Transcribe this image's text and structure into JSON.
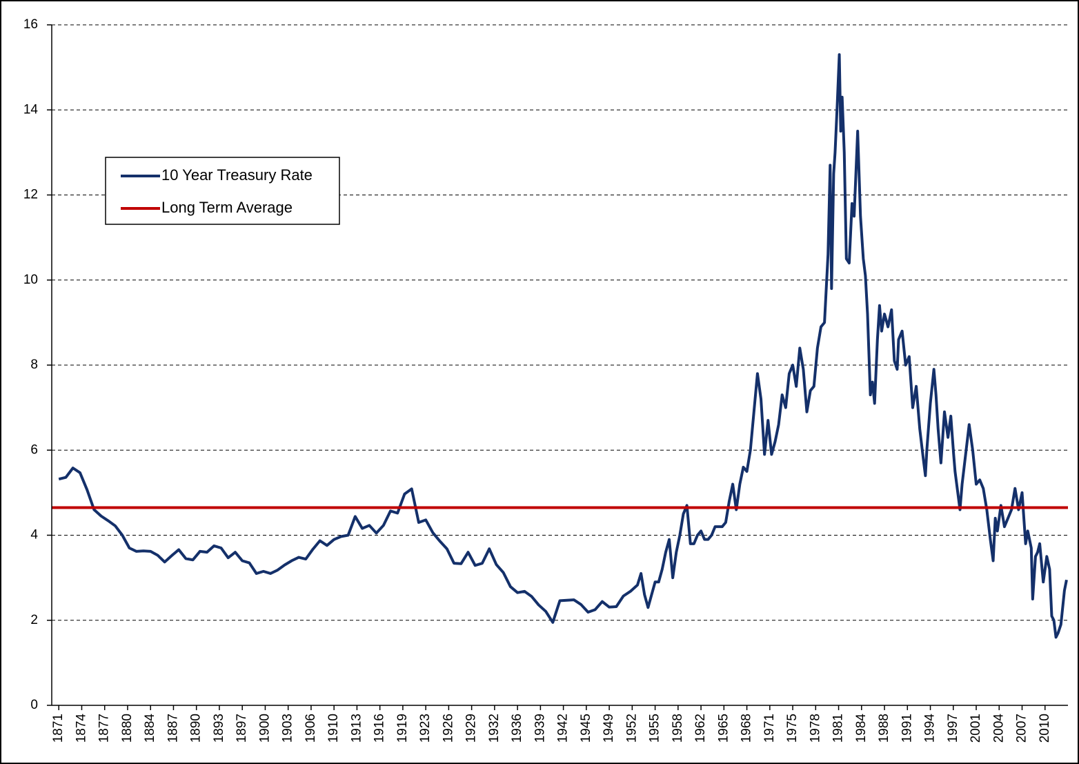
{
  "chart_data": {
    "type": "line",
    "xlim": [
      1870,
      2014
    ],
    "ylim": [
      0,
      16
    ],
    "yticks": [
      0,
      2,
      4,
      6,
      8,
      10,
      12,
      14,
      16
    ],
    "grid": true,
    "legend": "upper left",
    "xticks": [
      1871,
      {
        "value": 1874.25,
        "label": "1874"
      },
      {
        "value": 1877.5,
        "label": "1877"
      },
      {
        "value": 1880.75,
        "label": "1880"
      },
      1884,
      {
        "value": 1887.25,
        "label": "1887"
      },
      {
        "value": 1890.5,
        "label": "1890"
      },
      {
        "value": 1893.75,
        "label": "1893"
      },
      1897,
      {
        "value": 1900.25,
        "label": "1900"
      },
      {
        "value": 1903.5,
        "label": "1903"
      },
      {
        "value": 1906.75,
        "label": "1906"
      },
      1910,
      {
        "value": 1913.25,
        "label": "1913"
      },
      {
        "value": 1916.5,
        "label": "1916"
      },
      {
        "value": 1919.75,
        "label": "1919"
      },
      1923,
      {
        "value": 1926.25,
        "label": "1926"
      },
      {
        "value": 1929.5,
        "label": "1929"
      },
      {
        "value": 1932.75,
        "label": "1932"
      },
      1936,
      {
        "value": 1939.25,
        "label": "1939"
      },
      {
        "value": 1942.5,
        "label": "1942"
      },
      {
        "value": 1945.75,
        "label": "1945"
      },
      1949,
      {
        "value": 1952.25,
        "label": "1952"
      },
      {
        "value": 1955.5,
        "label": "1955"
      },
      {
        "value": 1958.75,
        "label": "1958"
      },
      1962,
      {
        "value": 1965.25,
        "label": "1965"
      },
      {
        "value": 1968.5,
        "label": "1968"
      },
      {
        "value": 1971.75,
        "label": "1971"
      },
      1975,
      {
        "value": 1978.25,
        "label": "1978"
      },
      {
        "value": 1981.5,
        "label": "1981"
      },
      {
        "value": 1984.75,
        "label": "1984"
      },
      1988,
      {
        "value": 1991.25,
        "label": "1991"
      },
      {
        "value": 1994.5,
        "label": "1994"
      },
      {
        "value": 1997.75,
        "label": "1997"
      },
      2001,
      {
        "value": 2004.25,
        "label": "2004"
      },
      {
        "value": 2007.5,
        "label": "2007"
      },
      {
        "value": 2010.75,
        "label": "2010"
      }
    ],
    "series": [
      {
        "name": "10 Year Treasury Rate",
        "color": "#14306a",
        "x": [
          1871,
          1872,
          1873,
          1874,
          1875,
          1876,
          1877,
          1878,
          1879,
          1880,
          1881,
          1882,
          1883,
          1884,
          1885,
          1886,
          1887,
          1888,
          1889,
          1890,
          1891,
          1892,
          1893,
          1894,
          1895,
          1896,
          1897,
          1898,
          1899,
          1900,
          1901,
          1902,
          1903,
          1904,
          1905,
          1906,
          1907,
          1908,
          1909,
          1910,
          1911,
          1912,
          1913,
          1914,
          1915,
          1916,
          1917,
          1918,
          1919,
          1920,
          1921,
          1922,
          1923,
          1924,
          1925,
          1926,
          1927,
          1928,
          1929,
          1930,
          1931,
          1932,
          1933,
          1934,
          1935,
          1936,
          1937,
          1938,
          1939,
          1940,
          1941,
          1942,
          1943,
          1944,
          1945,
          1946,
          1947,
          1948,
          1949,
          1950,
          1951,
          1952,
          1953,
          1953.5,
          1954,
          1954.5,
          1955,
          1955.5,
          1956,
          1956.5,
          1957,
          1957.5,
          1958,
          1958.5,
          1959,
          1959.5,
          1960,
          1960.5,
          1961,
          1961.5,
          1962,
          1962.5,
          1963,
          1963.5,
          1964,
          1964.5,
          1965,
          1965.5,
          1966,
          1966.5,
          1967,
          1967.5,
          1968,
          1968.5,
          1969,
          1969.5,
          1970,
          1970.5,
          1971,
          1971.5,
          1972,
          1972.5,
          1973,
          1973.5,
          1974,
          1974.5,
          1975,
          1975.5,
          1976,
          1976.5,
          1977,
          1977.5,
          1978,
          1978.5,
          1979,
          1979.5,
          1980,
          1980.3,
          1980.5,
          1980.8,
          1981,
          1981.3,
          1981.6,
          1981.8,
          1982,
          1982.3,
          1982.6,
          1983,
          1983.4,
          1983.7,
          1984,
          1984.2,
          1984.6,
          1985,
          1985.3,
          1985.6,
          1986,
          1986.3,
          1986.6,
          1987,
          1987.3,
          1987.6,
          1988,
          1988.5,
          1989,
          1989.4,
          1989.8,
          1990,
          1990.5,
          1991,
          1991.5,
          1992,
          1992.5,
          1993,
          1993.5,
          1993.8,
          1994,
          1994.5,
          1995,
          1995.3,
          1995.6,
          1996,
          1996.5,
          1997,
          1997.4,
          1997.8,
          1998,
          1998.7,
          1999,
          1999.5,
          2000,
          2000.5,
          2001,
          2001.5,
          2002,
          2002.5,
          2003,
          2003.4,
          2003.7,
          2004,
          2004.5,
          2005,
          2005.5,
          2006,
          2006.5,
          2007,
          2007.5,
          2008,
          2008.3,
          2008.8,
          2009,
          2009.4,
          2009.7,
          2010,
          2010.5,
          2011,
          2011.4,
          2011.7,
          2012,
          2012.3,
          2012.6,
          2013,
          2013.5,
          2013.8
        ],
        "values": [
          5.32,
          5.36,
          5.58,
          5.47,
          5.07,
          4.6,
          4.45,
          4.34,
          4.22,
          4.0,
          3.7,
          3.62,
          3.63,
          3.62,
          3.53,
          3.37,
          3.52,
          3.66,
          3.45,
          3.42,
          3.62,
          3.6,
          3.75,
          3.7,
          3.47,
          3.6,
          3.4,
          3.35,
          3.1,
          3.15,
          3.1,
          3.18,
          3.3,
          3.4,
          3.48,
          3.44,
          3.67,
          3.87,
          3.76,
          3.9,
          3.97,
          4.0,
          4.44,
          4.16,
          4.23,
          4.05,
          4.23,
          4.57,
          4.52,
          4.97,
          5.09,
          4.3,
          4.36,
          4.06,
          3.86,
          3.68,
          3.34,
          3.33,
          3.6,
          3.29,
          3.34,
          3.68,
          3.31,
          3.12,
          2.79,
          2.65,
          2.68,
          2.56,
          2.36,
          2.21,
          1.95,
          2.46,
          2.47,
          2.48,
          2.37,
          2.19,
          2.25,
          2.44,
          2.31,
          2.32,
          2.57,
          2.68,
          2.83,
          3.1,
          2.6,
          2.3,
          2.6,
          2.9,
          2.9,
          3.2,
          3.6,
          3.9,
          3.0,
          3.6,
          4.0,
          4.5,
          4.7,
          3.8,
          3.8,
          4.0,
          4.1,
          3.9,
          3.9,
          4.0,
          4.2,
          4.2,
          4.2,
          4.3,
          4.8,
          5.2,
          4.6,
          5.2,
          5.6,
          5.5,
          6.0,
          6.9,
          7.8,
          7.2,
          5.9,
          6.7,
          5.9,
          6.2,
          6.6,
          7.3,
          7.0,
          7.8,
          8.0,
          7.5,
          8.4,
          7.9,
          6.9,
          7.4,
          7.5,
          8.4,
          8.9,
          9.0,
          10.6,
          12.7,
          9.8,
          12.5,
          13.0,
          14.1,
          15.3,
          13.5,
          14.3,
          13.0,
          10.5,
          10.4,
          11.8,
          11.5,
          12.7,
          13.5,
          11.5,
          10.5,
          10.1,
          9.2,
          7.3,
          7.6,
          7.1,
          8.6,
          9.4,
          8.8,
          9.2,
          8.9,
          9.3,
          8.1,
          7.9,
          8.6,
          8.8,
          8.0,
          8.2,
          7.0,
          7.5,
          6.5,
          5.8,
          5.4,
          6.0,
          7.1,
          7.9,
          7.3,
          6.5,
          5.7,
          6.9,
          6.3,
          6.8,
          5.9,
          5.5,
          4.6,
          5.2,
          5.9,
          6.6,
          6.0,
          5.2,
          5.3,
          5.1,
          4.6,
          3.9,
          3.4,
          4.4,
          4.1,
          4.7,
          4.2,
          4.4,
          4.6,
          5.1,
          4.6,
          5.0,
          3.8,
          4.1,
          3.7,
          2.5,
          3.5,
          3.6,
          3.8,
          2.9,
          3.5,
          3.2,
          2.1,
          2.0,
          1.6,
          1.7,
          1.9,
          2.7,
          2.95
        ]
      }
    ],
    "reference_line": {
      "name": "Long Term Average",
      "color": "#c00000",
      "value": 4.65
    }
  }
}
